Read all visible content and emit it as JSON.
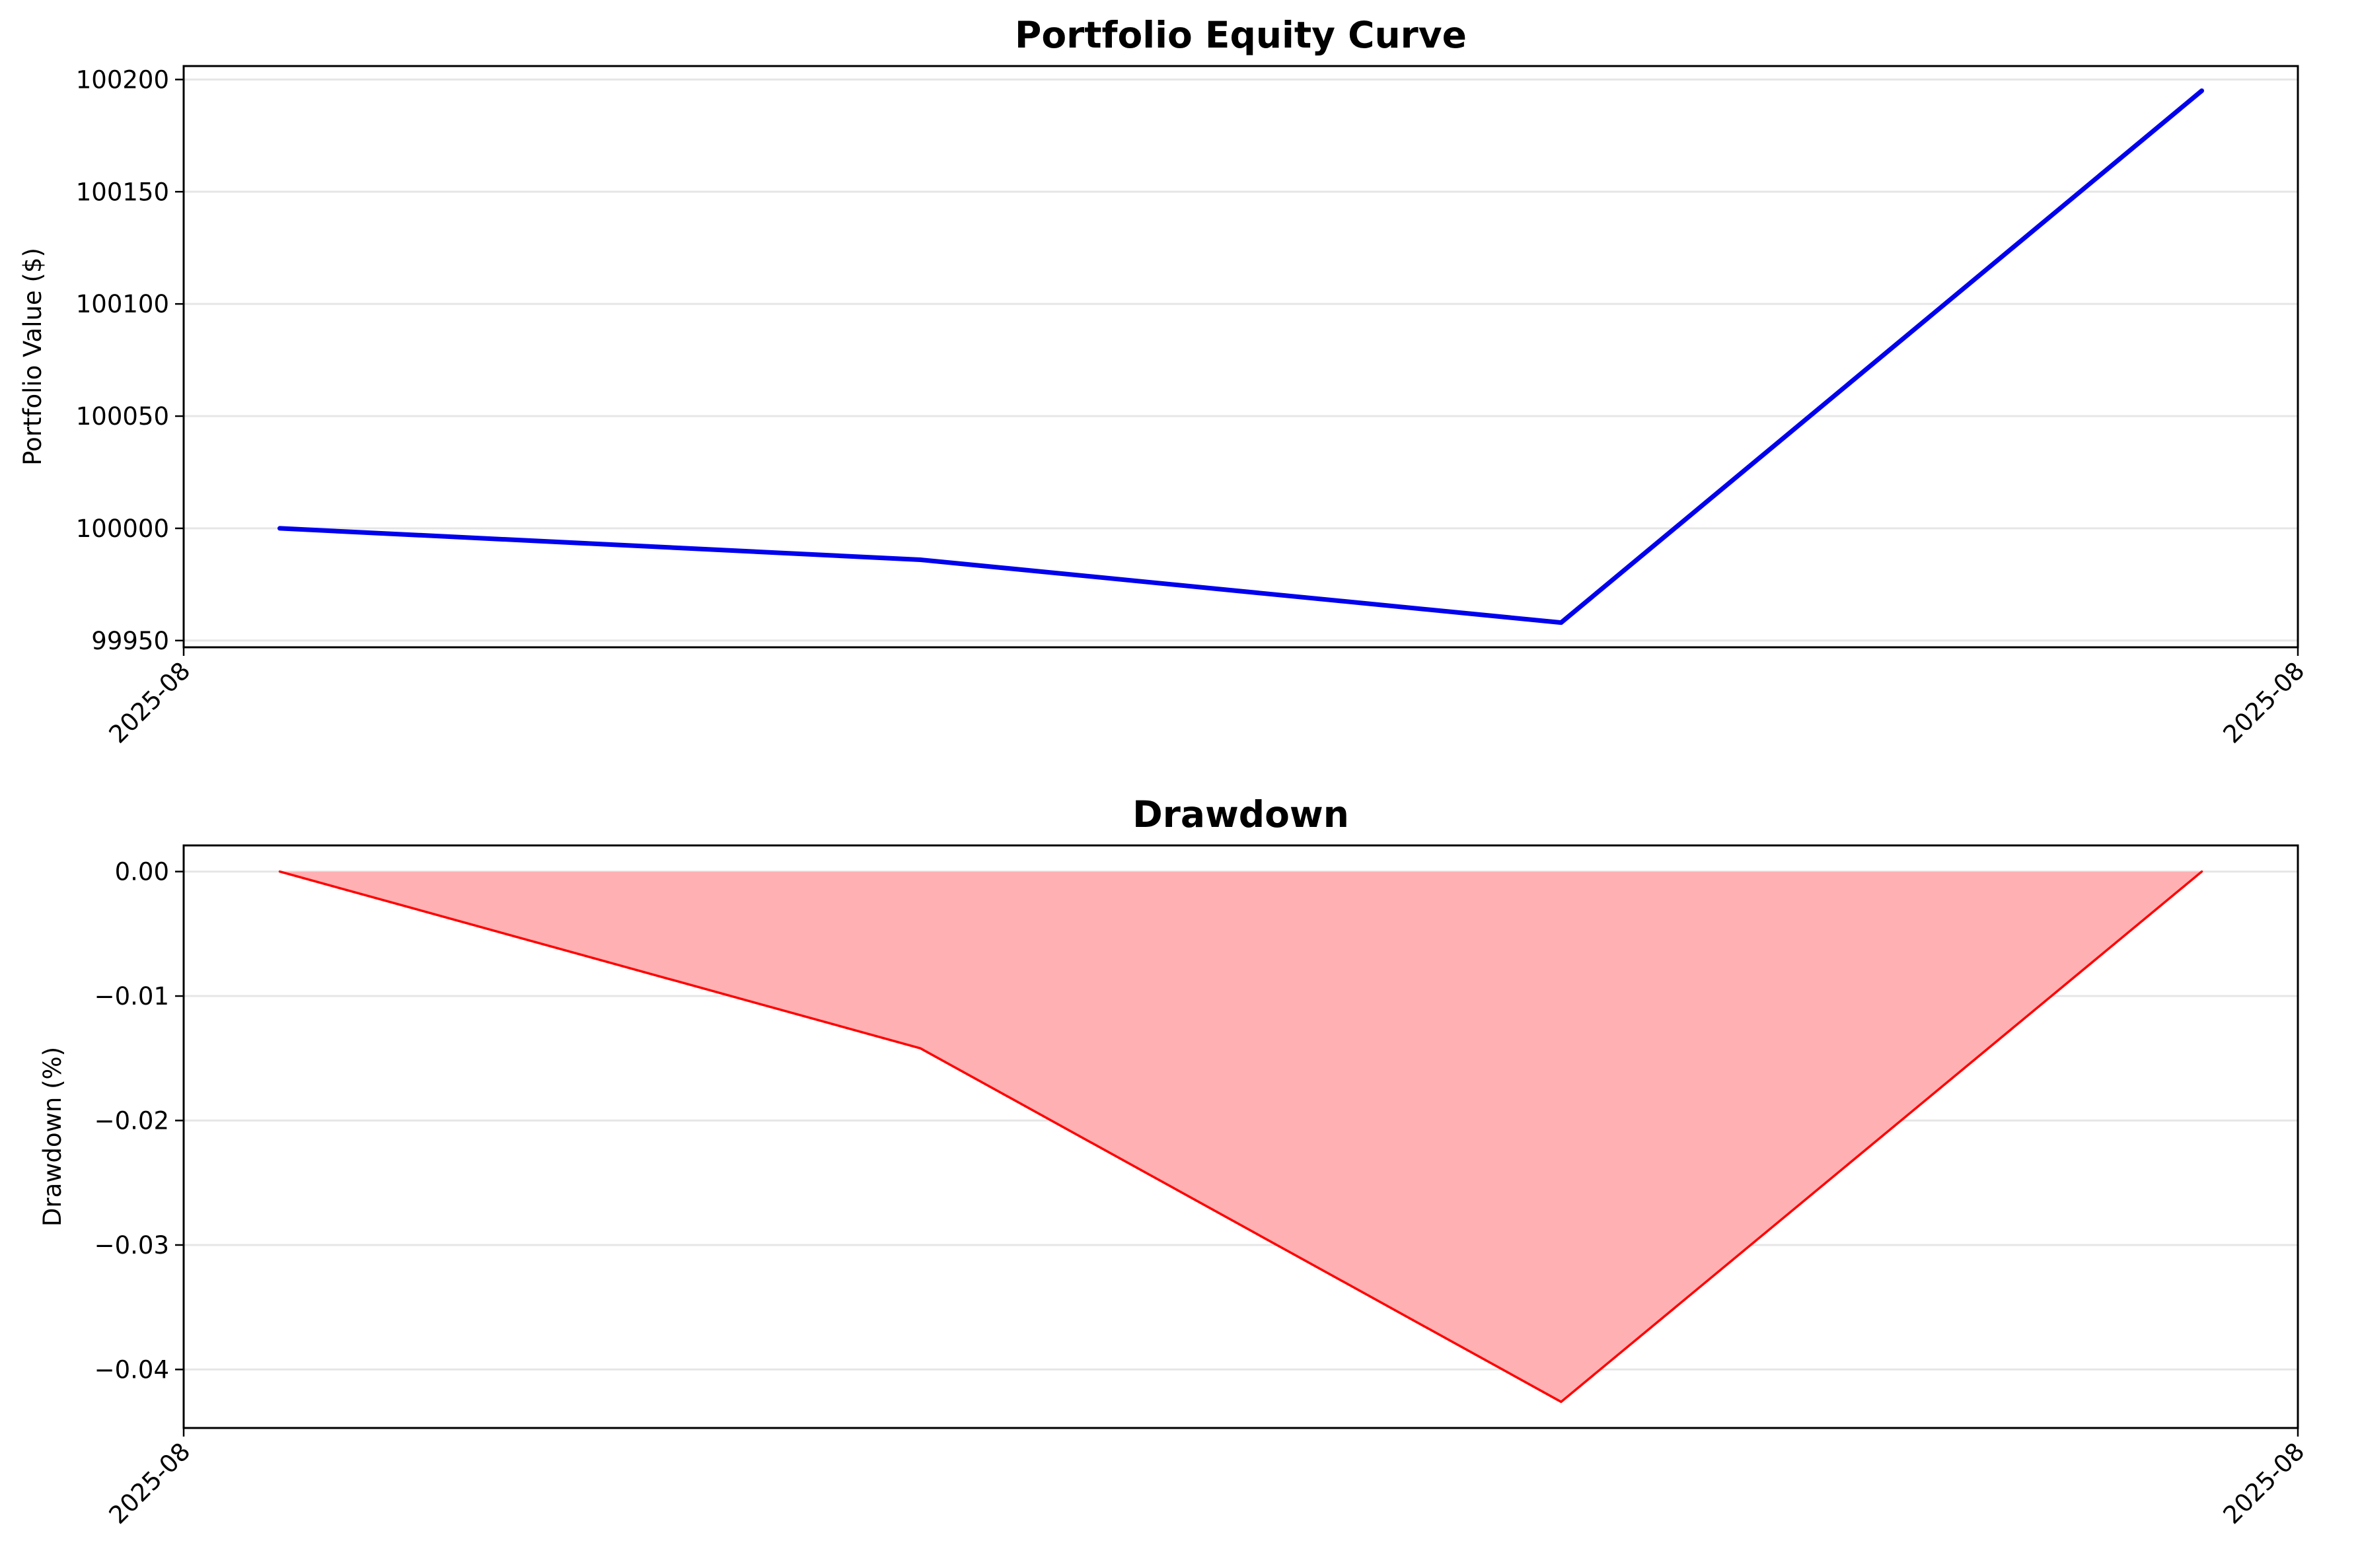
{
  "chart_data": [
    {
      "type": "line",
      "title": "Portfolio Equity Curve",
      "xlabel": "",
      "ylabel": "Portfolio Value ($)",
      "x": [
        1,
        2,
        3,
        4
      ],
      "xlim": [
        0.85,
        4.15
      ],
      "x_tick_labels": [
        {
          "x": 0.85,
          "label": "2025-08"
        },
        {
          "x": 4.15,
          "label": "2025-08"
        }
      ],
      "y_ticks": [
        99950,
        100000,
        100050,
        100100,
        100150,
        100200
      ],
      "ylim": [
        99947,
        100206
      ],
      "grid": "horizontal",
      "series": [
        {
          "values": [
            100000,
            99986,
            99958,
            100195
          ],
          "color": "#0000ee"
        }
      ]
    },
    {
      "type": "area",
      "title": "Drawdown",
      "xlabel": "",
      "ylabel": "Drawdown (%)",
      "x": [
        1,
        2,
        3,
        4
      ],
      "xlim": [
        0.85,
        4.15
      ],
      "x_tick_labels": [
        {
          "x": 0.85,
          "label": "2025-08"
        },
        {
          "x": 4.15,
          "label": "2025-08"
        }
      ],
      "y_ticks": [
        0.0,
        -0.01,
        -0.02,
        -0.03,
        -0.04
      ],
      "y_tick_labels": [
        "0.00",
        "−0.01",
        "−0.02",
        "−0.03",
        "−0.04"
      ],
      "ylim": [
        -0.0447,
        0.0021
      ],
      "grid": "horizontal",
      "series": [
        {
          "values": [
            0.0,
            -0.0142,
            -0.0426,
            0.0
          ],
          "color": "#ff0000",
          "fill": "#ffb0b2"
        }
      ]
    }
  ]
}
